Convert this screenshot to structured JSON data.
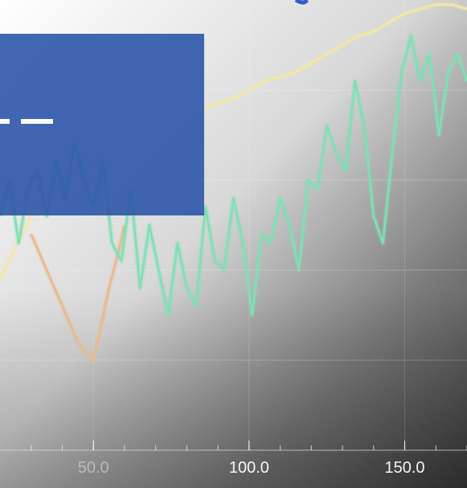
{
  "chart_data": {
    "type": "line",
    "title": "",
    "xlabel": "",
    "ylabel": "",
    "xlim": [
      20,
      170
    ],
    "ylim": [
      0,
      100
    ],
    "xticks": [
      50,
      100,
      150
    ],
    "xtick_labels": [
      "50.0",
      "100.0",
      "150.0"
    ],
    "grid": true,
    "legend": "none",
    "series": [
      {
        "color": "#f2e7a6",
        "x": [
          20,
          25,
          30,
          35,
          40,
          45,
          50,
          55,
          60,
          65,
          70,
          75,
          80,
          85,
          90,
          95,
          100,
          105,
          110,
          115,
          120,
          125,
          130,
          135,
          140,
          145,
          150,
          155,
          160,
          165,
          170
        ],
        "y": [
          38,
          45,
          52,
          57,
          60,
          62,
          64,
          66,
          68,
          70,
          72,
          73,
          74,
          76,
          77,
          78,
          80,
          82,
          83,
          84,
          86,
          88,
          90,
          92,
          93,
          95,
          97,
          98,
          99,
          99,
          98
        ]
      },
      {
        "color": "#e8b98d",
        "x": [
          30,
          35,
          40,
          45,
          50,
          52,
          55,
          58,
          60
        ],
        "y": [
          48,
          40,
          32,
          24,
          20,
          26,
          36,
          44,
          50
        ]
      },
      {
        "color": "#7fe0b4",
        "x": [
          20,
          23,
          26,
          29,
          32,
          35,
          38,
          41,
          44,
          47,
          50,
          53,
          56,
          59,
          62,
          65,
          68,
          71,
          74,
          77,
          80,
          83,
          86,
          89,
          92,
          95,
          98,
          101,
          104,
          107,
          110,
          113,
          116,
          119,
          122,
          125,
          128,
          131,
          134,
          137,
          140,
          143,
          146,
          149,
          152,
          155,
          158,
          161,
          164,
          167,
          170
        ],
        "y": [
          52,
          60,
          46,
          58,
          62,
          52,
          64,
          56,
          68,
          60,
          54,
          64,
          46,
          42,
          58,
          36,
          50,
          40,
          30,
          46,
          36,
          32,
          54,
          42,
          40,
          56,
          46,
          30,
          48,
          46,
          56,
          50,
          40,
          60,
          58,
          72,
          66,
          62,
          82,
          72,
          52,
          46,
          66,
          84,
          92,
          82,
          88,
          70,
          84,
          88,
          82
        ]
      }
    ]
  },
  "panel": {
    "color": "#2e56aa"
  }
}
